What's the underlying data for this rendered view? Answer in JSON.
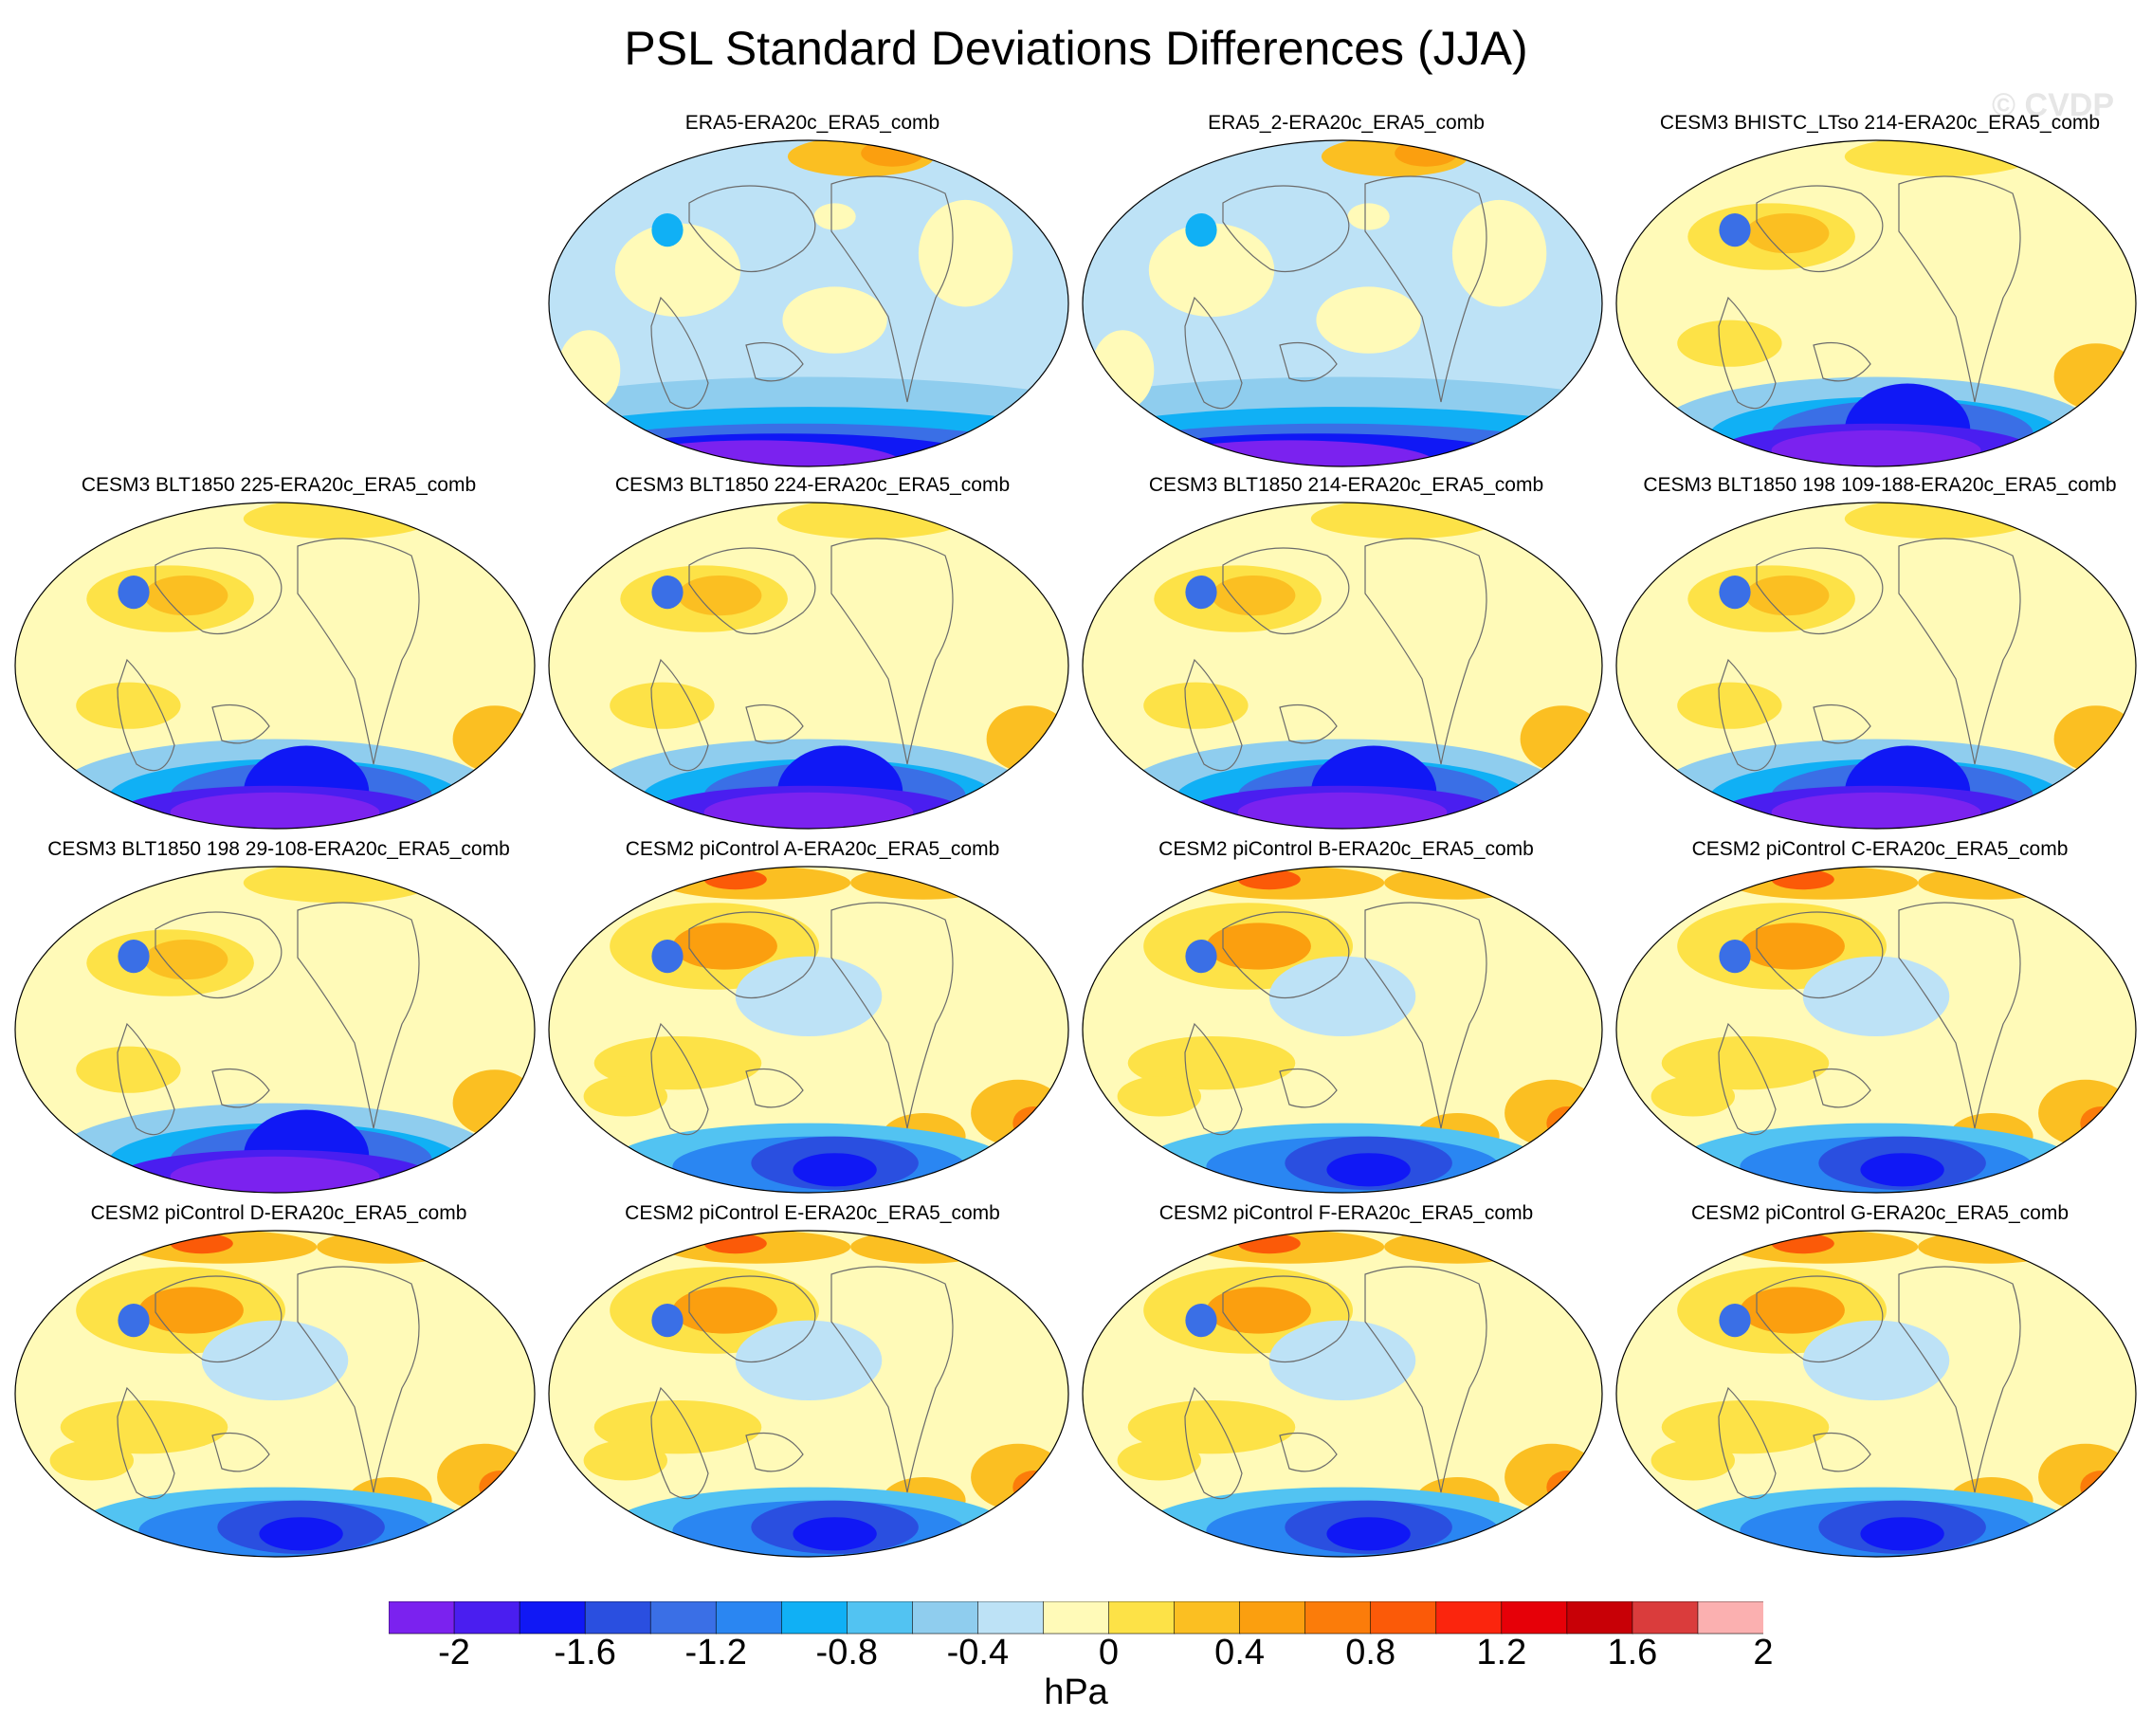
{
  "figure": {
    "title": "PSL Standard Deviations Differences (JJA)",
    "watermark": "© CVDP"
  },
  "panels": [
    {
      "title": "ERA5-ERA20c_ERA5_comb",
      "pattern": "obs"
    },
    {
      "title": "ERA5_2-ERA20c_ERA5_comb",
      "pattern": "obs"
    },
    {
      "title": "CESM3 BHISTC_LTso 214-ERA20c_ERA5_comb",
      "pattern": "model"
    },
    {
      "title": "CESM3 BLT1850 225-ERA20c_ERA5_comb",
      "pattern": "model"
    },
    {
      "title": "CESM3 BLT1850 224-ERA20c_ERA5_comb",
      "pattern": "model"
    },
    {
      "title": "CESM3 BLT1850 214-ERA20c_ERA5_comb",
      "pattern": "model"
    },
    {
      "title": "CESM3 BLT1850 198 109-188-ERA20c_ERA5_comb",
      "pattern": "model"
    },
    {
      "title": "CESM3 BLT1850 198 29-108-ERA20c_ERA5_comb",
      "pattern": "model"
    },
    {
      "title": "CESM2 piControl A-ERA20c_ERA5_comb",
      "pattern": "warm"
    },
    {
      "title": "CESM2 piControl B-ERA20c_ERA5_comb",
      "pattern": "warm"
    },
    {
      "title": "CESM2 piControl C-ERA20c_ERA5_comb",
      "pattern": "warm"
    },
    {
      "title": "CESM2 piControl D-ERA20c_ERA5_comb",
      "pattern": "warm"
    },
    {
      "title": "CESM2 piControl E-ERA20c_ERA5_comb",
      "pattern": "warm"
    },
    {
      "title": "CESM2 piControl F-ERA20c_ERA5_comb",
      "pattern": "warm"
    },
    {
      "title": "CESM2 piControl G-ERA20c_ERA5_comb",
      "pattern": "warm"
    }
  ],
  "colorbar": {
    "units": "hPa",
    "min": -2.2,
    "max": 2.2,
    "step": 0.2,
    "tick_labels": [
      "-2",
      "-1.6",
      "-1.2",
      "-0.8",
      "-0.4",
      "0",
      "0.4",
      "0.8",
      "1.2",
      "1.6",
      "2"
    ],
    "tick_values": [
      -2,
      -1.6,
      -1.2,
      -0.8,
      -0.4,
      0,
      0.4,
      0.8,
      1.2,
      1.6,
      2
    ],
    "colors": [
      "#7b22ef",
      "#4a1ef0",
      "#1018f5",
      "#2a4fe0",
      "#3a6fe6",
      "#2a86f2",
      "#10b0f5",
      "#52c3f2",
      "#8fcdee",
      "#bde2f6",
      "#fffab8",
      "#fde247",
      "#fbbf22",
      "#fb9f0f",
      "#fb7c0a",
      "#fb5a08",
      "#fb250d",
      "#e60008",
      "#c80006",
      "#da3c3c",
      "#fbb0b0"
    ]
  },
  "chart_data": {
    "type": "map",
    "projection": "Robinson (Pacific-centered)",
    "variable": "PSL Standard Deviations Differences",
    "season": "JJA",
    "units": "hPa",
    "contour_range": [
      -2.2,
      2.2
    ],
    "contour_interval": 0.2,
    "panel_count": 15,
    "layout": "4 rows x 4 columns, first cell empty"
  }
}
